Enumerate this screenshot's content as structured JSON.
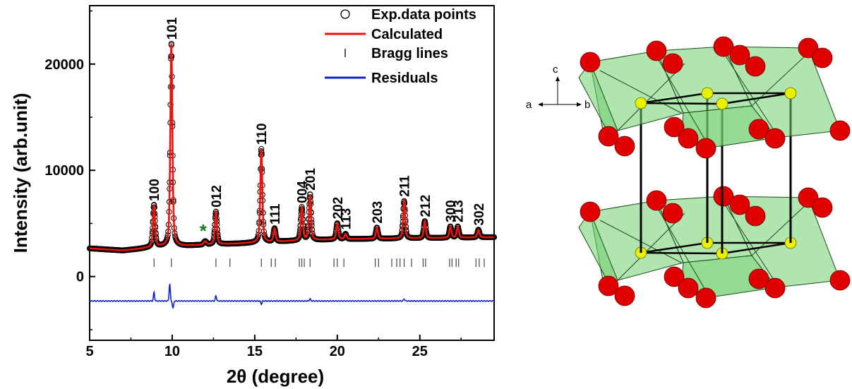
{
  "chart_data": {
    "type": "line",
    "xlabel": "2θ (degree)",
    "ylabel": "Intensity (arb.unit)",
    "xlim": [
      5,
      29.5
    ],
    "ylim": [
      -6000,
      25500
    ],
    "xticks": [
      5,
      10,
      15,
      20,
      25
    ],
    "yticks": [
      0,
      10000,
      20000
    ],
    "grid": false,
    "legend_position": "top-right",
    "legend": [
      {
        "label": "Exp.data points",
        "marker": "open-circle",
        "color": "#000000"
      },
      {
        "label": "Calculated",
        "marker": "line",
        "color": "#e8140c"
      },
      {
        "label": "Bragg lines",
        "marker": "tick",
        "color": "#000000"
      },
      {
        "label": "Residuals",
        "marker": "line",
        "color": "#1020c8"
      }
    ],
    "background": [
      [
        5,
        2650
      ],
      [
        6,
        2550
      ],
      [
        7,
        2450
      ],
      [
        8,
        2600
      ],
      [
        9,
        2800
      ],
      [
        11,
        2900
      ],
      [
        12,
        3000
      ],
      [
        14,
        3100
      ],
      [
        16,
        3250
      ],
      [
        18,
        3400
      ],
      [
        20,
        3500
      ],
      [
        22,
        3550
      ],
      [
        25,
        3600
      ],
      [
        27,
        3650
      ],
      [
        29.5,
        3700
      ]
    ],
    "peaks": [
      {
        "hkl": "100",
        "x": 8.9,
        "y": 6700
      },
      {
        "hkl": "101",
        "x": 9.95,
        "y": 21900
      },
      {
        "hkl": "012",
        "x": 12.65,
        "y": 6100
      },
      {
        "hkl": "110",
        "x": 15.4,
        "y": 12000
      },
      {
        "hkl": "111",
        "x": 16.2,
        "y": 4500
      },
      {
        "hkl": "004",
        "x": 17.85,
        "y": 6500
      },
      {
        "hkl": "201",
        "x": 18.35,
        "y": 7700
      },
      {
        "hkl": "202",
        "x": 20.0,
        "y": 5000
      },
      {
        "hkl": "113",
        "x": 20.5,
        "y": 4000
      },
      {
        "hkl": "203",
        "x": 22.4,
        "y": 4600
      },
      {
        "hkl": "211",
        "x": 24.05,
        "y": 7100
      },
      {
        "hkl": "212",
        "x": 25.3,
        "y": 5200
      },
      {
        "hkl": "300",
        "x": 26.85,
        "y": 4700
      },
      {
        "hkl": "213",
        "x": 27.3,
        "y": 4700
      },
      {
        "hkl": "302",
        "x": 28.55,
        "y": 4400
      }
    ],
    "impurity_peak": {
      "label": "*",
      "x": 12.0,
      "y": 3300,
      "color": "#1a7a1a"
    },
    "bragg_lines_y": 1300,
    "bragg_positions": [
      8.9,
      9.95,
      12.65,
      13.5,
      15.4,
      16.0,
      16.25,
      17.7,
      17.85,
      18.0,
      18.35,
      19.8,
      20.0,
      20.4,
      22.3,
      22.5,
      23.3,
      23.6,
      23.8,
      24.05,
      24.5,
      25.2,
      25.35,
      26.8,
      26.95,
      27.2,
      27.35,
      28.4,
      28.6,
      28.9
    ],
    "residual_baseline": -2300,
    "residual_spikes": [
      {
        "x": 8.9,
        "dy": 800
      },
      {
        "x": 9.85,
        "dy": 1600
      },
      {
        "x": 10.05,
        "dy": -700
      },
      {
        "x": 12.65,
        "dy": 500
      },
      {
        "x": 15.4,
        "dy": -300
      },
      {
        "x": 18.35,
        "dy": 200
      },
      {
        "x": 24.05,
        "dy": 200
      }
    ]
  },
  "crystal": {
    "axes_labels": {
      "a": "a",
      "b": "b",
      "c": "c"
    },
    "colors": {
      "oxygen": "#e00000",
      "metal": "#e8f000",
      "polyhedron": "#70d070",
      "bond": "#000000"
    }
  }
}
